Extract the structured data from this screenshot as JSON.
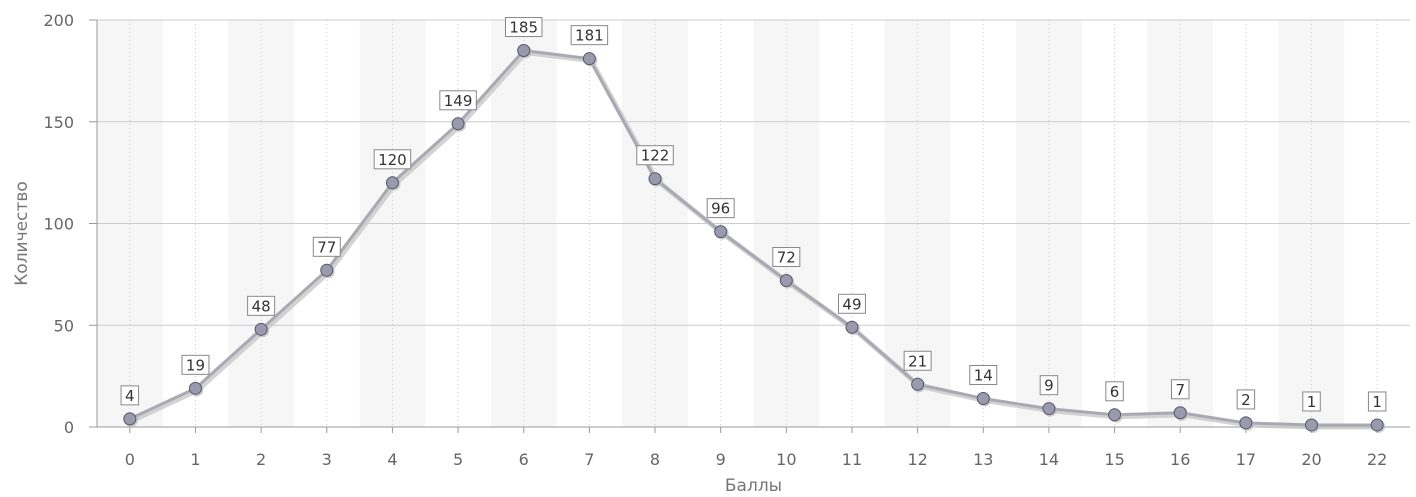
{
  "chart_data": {
    "type": "line",
    "categories": [
      "0",
      "1",
      "2",
      "3",
      "4",
      "5",
      "6",
      "7",
      "8",
      "9",
      "10",
      "11",
      "12",
      "13",
      "14",
      "15",
      "16",
      "17",
      "20",
      "22"
    ],
    "series": [
      {
        "values": [
          4,
          19,
          48,
          77,
          120,
          149,
          185,
          181,
          122,
          96,
          72,
          49,
          21,
          14,
          9,
          6,
          7,
          2,
          1,
          1
        ]
      }
    ],
    "xlabel": "Баллы",
    "ylabel": "Количество",
    "ylim": [
      0,
      200
    ],
    "yticks": [
      0,
      50,
      100,
      150,
      200
    ],
    "grid": true,
    "data_labels": true,
    "colors": {
      "line": "#a9a9b3",
      "line_shadow": "#c8c8c8",
      "marker_fill": "#9a9aae",
      "marker_stroke": "#555566",
      "band": "#f6f6f6",
      "gridline": "#cccccc"
    }
  }
}
